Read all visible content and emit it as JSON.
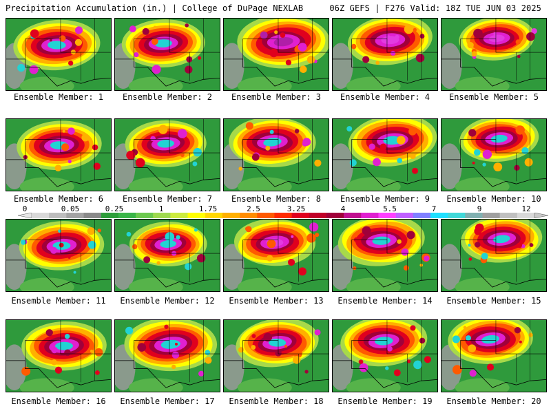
{
  "header": {
    "title": "Precipitation Accumulation (in.) | College of DuPage NEXLAB",
    "run_info": "06Z GEFS | F276 Valid: 18Z TUE JUN 03 2025"
  },
  "panels": [
    {
      "label": "Ensemble Member: 1",
      "c": "#22d3d3",
      "i": 0.85
    },
    {
      "label": "Ensemble Member: 2",
      "c": "#22d3d3",
      "i": 0.75
    },
    {
      "label": "Ensemble Member: 3",
      "c": "#b01ea8",
      "i": 1.0
    },
    {
      "label": "Ensemble Member: 4",
      "c": "#e33be0",
      "i": 0.8
    },
    {
      "label": "Ensemble Member: 5",
      "c": "#e33be0",
      "i": 0.55
    },
    {
      "label": "Ensemble Member: 6",
      "c": "#22d3d3",
      "i": 0.8
    },
    {
      "label": "Ensemble Member: 7",
      "c": "#22d3d3",
      "i": 0.7
    },
    {
      "label": "Ensemble Member: 8",
      "c": "#22d3d3",
      "i": 0.85
    },
    {
      "label": "Ensemble Member: 9",
      "c": "#22d3d3",
      "i": 0.9
    },
    {
      "label": "Ensemble Member: 10",
      "c": "#22d3d3",
      "i": 0.65
    },
    {
      "label": "Ensemble Member: 11",
      "c": "#22d3d3",
      "i": 0.8
    },
    {
      "label": "Ensemble Member: 12",
      "c": "#22d3d3",
      "i": 0.6
    },
    {
      "label": "Ensemble Member: 13",
      "c": "#e33be0",
      "i": 0.7
    },
    {
      "label": "Ensemble Member: 14",
      "c": "#22d3d3",
      "i": 0.85
    },
    {
      "label": "Ensemble Member: 15",
      "c": "#22d3d3",
      "i": 0.7
    },
    {
      "label": "Ensemble Member: 16",
      "c": "#22d3d3",
      "i": 0.8
    },
    {
      "label": "Ensemble Member: 17",
      "c": "#22d3d3",
      "i": 1.0
    },
    {
      "label": "Ensemble Member: 18",
      "c": "#22d3d3",
      "i": 0.75
    },
    {
      "label": "Ensemble Member: 19",
      "c": "#22d3d3",
      "i": 0.85
    },
    {
      "label": "Ensemble Member: 20",
      "c": "#22d3d3",
      "i": 0.8
    }
  ],
  "legend": {
    "labels": [
      "0",
      "0.05",
      "0.25",
      "1",
      "1.75",
      "2.5",
      "3.25",
      "4",
      "5.5",
      "7",
      "9",
      "12"
    ],
    "colors": [
      "#d9d9d9",
      "#bdbdbd",
      "#a3a3a3",
      "#8a8a8a",
      "#2e9e3a",
      "#3ab548",
      "#6cc94f",
      "#9ed94f",
      "#ccec3f",
      "#ffff00",
      "#ffd700",
      "#ffb000",
      "#ff8c00",
      "#ff5a00",
      "#ff2a00",
      "#e0001e",
      "#c00028",
      "#a0003a",
      "#c0108f",
      "#e020d0",
      "#ff40ff",
      "#c060ff",
      "#8080ff",
      "#20e0ff",
      "#40d8d8",
      "#80b0b0",
      "#a0a0a0",
      "#c0c0c0",
      "#d8d8d8"
    ]
  }
}
